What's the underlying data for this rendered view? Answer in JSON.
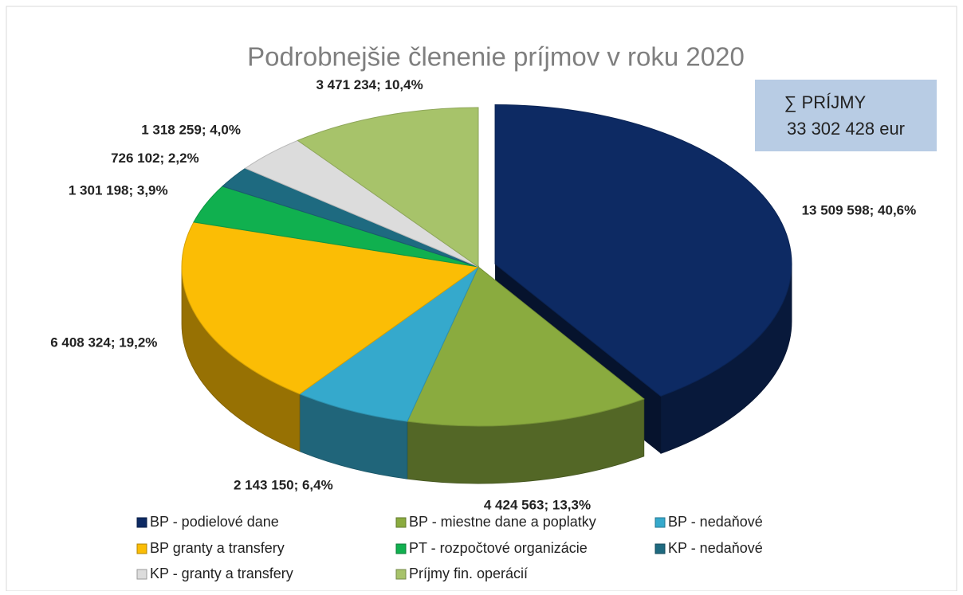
{
  "chart_data": {
    "type": "pie3d",
    "title": "Podrobnejšie členenie príjmov v roku 2020",
    "annotation": {
      "line1": "∑ PRÍJMY",
      "line2": "33 302 428 eur"
    },
    "series": [
      {
        "name": "BP - podielové dane",
        "color": "#0d2a63",
        "values": [
          13509598
        ],
        "value_labels": [
          "13 509 598; 40,6%"
        ]
      },
      {
        "name": "BP - miestne dane a poplatky",
        "color": "#8aab3f",
        "values": [
          4424563
        ],
        "value_labels": [
          "4 424 563; 13,3%"
        ]
      },
      {
        "name": "BP - nedaňové",
        "color": "#35a9cc",
        "values": [
          2143150
        ],
        "value_labels": [
          "2 143 150; 6,4%"
        ]
      },
      {
        "name": "BP granty a transfery",
        "color": "#fbbd05",
        "values": [
          6408324
        ],
        "value_labels": [
          "6 408 324; 19,2%"
        ]
      },
      {
        "name": "PT - rozpočtové organizácie",
        "color": "#10b04f",
        "values": [
          1301198
        ],
        "value_labels": [
          "1 301 198; 3,9%"
        ]
      },
      {
        "name": "KP - nedaňové",
        "color": "#1e6a80",
        "values": [
          726102
        ],
        "value_labels": [
          "726 102; 2,2%"
        ]
      },
      {
        "name": "KP - granty a transfery",
        "color": "#dcdcdc",
        "values": [
          1318259
        ],
        "value_labels": [
          "1 318 259; 4,0%"
        ]
      },
      {
        "name": "Príjmy fin. operácií",
        "color": "#a7c36a",
        "values": [
          3471234
        ],
        "value_labels": [
          "3 471 234; 10,4%"
        ]
      }
    ]
  }
}
